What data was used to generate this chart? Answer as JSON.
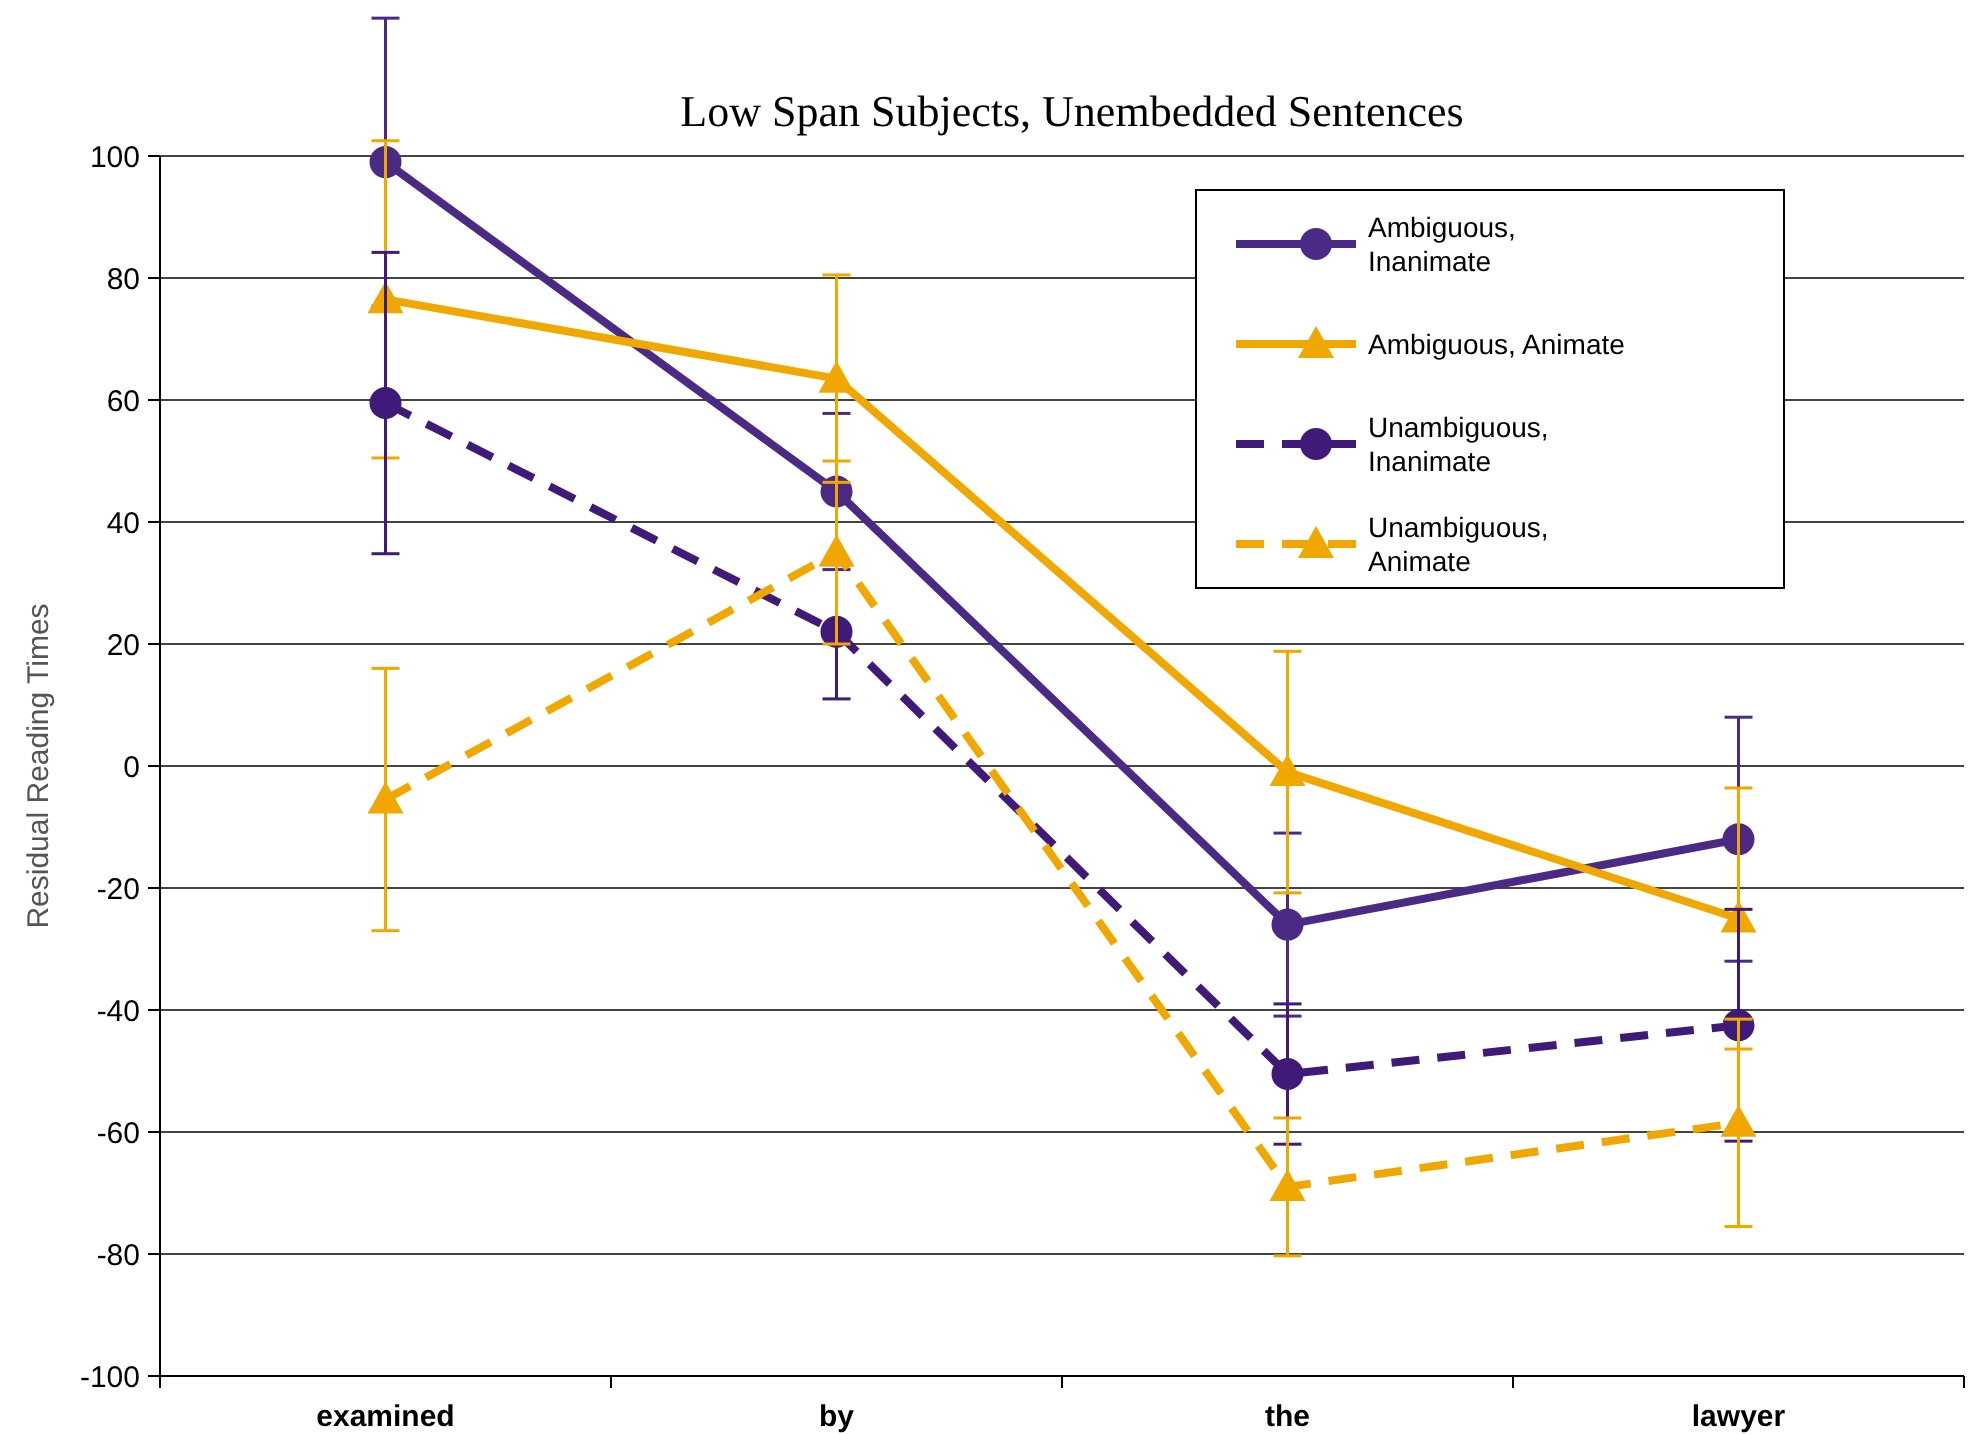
{
  "chart_data": {
    "type": "line",
    "title": "Low Span Subjects, Unembedded Sentences",
    "ylabel": "Residual Reading Times",
    "categories": [
      "examined",
      "by",
      "the",
      "lawyer"
    ],
    "ylim": [
      -100,
      100
    ],
    "yticks": [
      -100,
      -80,
      -60,
      -40,
      -20,
      0,
      20,
      40,
      60,
      80,
      100
    ],
    "grid": "y",
    "legend": "top right",
    "series": [
      {
        "name": "Ambiguous,\nInanimate",
        "color": "#4b2a85",
        "marker": "circle",
        "line_style": "solid",
        "values": [
          99,
          45,
          -26,
          -12
        ],
        "errors": [
          23.6,
          12.8,
          15,
          20
        ]
      },
      {
        "name": "Ambiguous, Animate",
        "color": "#f0a800",
        "marker": "triangle",
        "line_style": "solid",
        "values": [
          76.5,
          63.5,
          -1,
          -25
        ],
        "errors": [
          26,
          17,
          19.8,
          21.4
        ]
      },
      {
        "name": "Unambiguous,\nInanimate",
        "color": "#3f1a78",
        "marker": "circle",
        "line_style": "dashed",
        "values": [
          59.5,
          22,
          -50.5,
          -42.5
        ],
        "errors": [
          24.7,
          11,
          11.5,
          19
        ]
      },
      {
        "name": "Unambiguous,\nAnimate",
        "color": "#f0a800",
        "marker": "triangle",
        "line_style": "dashed",
        "values": [
          -5.5,
          35,
          -69,
          -58.5
        ],
        "errors": [
          21.5,
          15,
          11.3,
          17
        ]
      }
    ]
  }
}
